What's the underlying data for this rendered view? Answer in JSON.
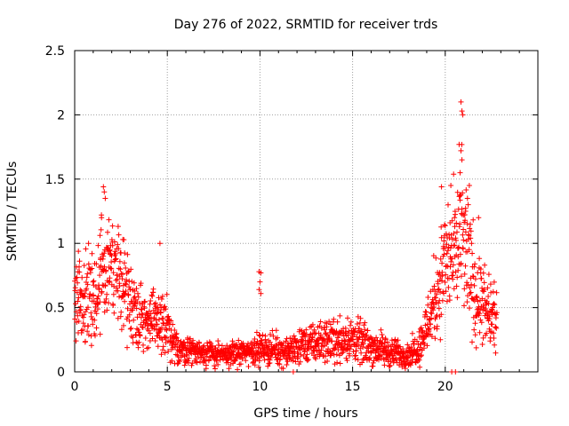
{
  "chart_data": {
    "type": "scatter",
    "title": "Day 276 of 2022, SRMTID for receiver trds",
    "xlabel": "GPS time / hours",
    "ylabel": "SRMTID / TECUs",
    "xlim": [
      0,
      25
    ],
    "ylim": [
      0,
      2.5
    ],
    "x_ticks": [
      0,
      5,
      10,
      15,
      20
    ],
    "y_ticks": [
      0,
      0.5,
      1,
      1.5,
      2,
      2.5
    ],
    "x_tick_labels": [
      "0",
      "5",
      "10",
      "15",
      "20"
    ],
    "y_tick_labels": [
      "0",
      "0.5",
      "1",
      "1.5",
      "2",
      "2.5"
    ],
    "grid": true,
    "marker": "+",
    "marker_color": "#ff0000",
    "envelope": [
      {
        "x": 0.0,
        "mean": 0.55,
        "spread": 0.2
      },
      {
        "x": 0.3,
        "mean": 0.62,
        "spread": 0.25
      },
      {
        "x": 0.8,
        "mean": 0.5,
        "spread": 0.3
      },
      {
        "x": 1.2,
        "mean": 0.55,
        "spread": 0.3
      },
      {
        "x": 1.6,
        "mean": 0.9,
        "spread": 0.3
      },
      {
        "x": 2.0,
        "mean": 0.85,
        "spread": 0.25
      },
      {
        "x": 2.6,
        "mean": 0.7,
        "spread": 0.25
      },
      {
        "x": 3.2,
        "mean": 0.5,
        "spread": 0.2
      },
      {
        "x": 3.8,
        "mean": 0.4,
        "spread": 0.15
      },
      {
        "x": 4.5,
        "mean": 0.4,
        "spread": 0.2
      },
      {
        "x": 4.9,
        "mean": 0.35,
        "spread": 0.2
      },
      {
        "x": 5.3,
        "mean": 0.2,
        "spread": 0.1
      },
      {
        "x": 6.0,
        "mean": 0.17,
        "spread": 0.08
      },
      {
        "x": 7.0,
        "mean": 0.15,
        "spread": 0.07
      },
      {
        "x": 8.0,
        "mean": 0.13,
        "spread": 0.06
      },
      {
        "x": 9.0,
        "mean": 0.15,
        "spread": 0.07
      },
      {
        "x": 10.0,
        "mean": 0.18,
        "spread": 0.08
      },
      {
        "x": 11.0,
        "mean": 0.17,
        "spread": 0.08
      },
      {
        "x": 11.5,
        "mean": 0.15,
        "spread": 0.07
      },
      {
        "x": 12.0,
        "mean": 0.2,
        "spread": 0.1
      },
      {
        "x": 13.0,
        "mean": 0.22,
        "spread": 0.1
      },
      {
        "x": 14.0,
        "mean": 0.25,
        "spread": 0.12
      },
      {
        "x": 15.0,
        "mean": 0.25,
        "spread": 0.12
      },
      {
        "x": 16.0,
        "mean": 0.2,
        "spread": 0.1
      },
      {
        "x": 17.0,
        "mean": 0.15,
        "spread": 0.08
      },
      {
        "x": 18.0,
        "mean": 0.13,
        "spread": 0.06
      },
      {
        "x": 18.6,
        "mean": 0.2,
        "spread": 0.1
      },
      {
        "x": 19.0,
        "mean": 0.35,
        "spread": 0.15
      },
      {
        "x": 19.5,
        "mean": 0.6,
        "spread": 0.25
      },
      {
        "x": 20.0,
        "mean": 0.85,
        "spread": 0.3
      },
      {
        "x": 20.5,
        "mean": 0.9,
        "spread": 0.35
      },
      {
        "x": 20.9,
        "mean": 1.05,
        "spread": 0.4
      },
      {
        "x": 21.3,
        "mean": 0.8,
        "spread": 0.35
      },
      {
        "x": 21.8,
        "mean": 0.55,
        "spread": 0.25
      },
      {
        "x": 22.3,
        "mean": 0.45,
        "spread": 0.2
      },
      {
        "x": 22.8,
        "mean": 0.4,
        "spread": 0.15
      }
    ],
    "notable_points": [
      {
        "x": 1.55,
        "y": 1.44
      },
      {
        "x": 1.6,
        "y": 1.4
      },
      {
        "x": 1.65,
        "y": 1.35
      },
      {
        "x": 1.45,
        "y": 1.2
      },
      {
        "x": 2.6,
        "y": 1.03
      },
      {
        "x": 4.6,
        "y": 1.0
      },
      {
        "x": 9.95,
        "y": 0.78
      },
      {
        "x": 10.05,
        "y": 0.77
      },
      {
        "x": 10.0,
        "y": 0.7
      },
      {
        "x": 9.95,
        "y": 0.64
      },
      {
        "x": 10.05,
        "y": 0.61
      },
      {
        "x": 11.8,
        "y": 0.0
      },
      {
        "x": 20.35,
        "y": 0.0
      },
      {
        "x": 20.55,
        "y": 0.0
      },
      {
        "x": 19.8,
        "y": 1.44
      },
      {
        "x": 20.3,
        "y": 1.45
      },
      {
        "x": 20.5,
        "y": 1.2
      },
      {
        "x": 20.75,
        "y": 1.77
      },
      {
        "x": 20.85,
        "y": 1.72
      },
      {
        "x": 20.9,
        "y": 1.65
      },
      {
        "x": 20.8,
        "y": 1.55
      },
      {
        "x": 20.85,
        "y": 2.1
      },
      {
        "x": 20.9,
        "y": 2.03
      },
      {
        "x": 20.95,
        "y": 2.0
      },
      {
        "x": 21.3,
        "y": 1.45
      },
      {
        "x": 21.2,
        "y": 1.35
      },
      {
        "x": 21.1,
        "y": 1.25
      },
      {
        "x": 21.8,
        "y": 1.2
      }
    ]
  }
}
